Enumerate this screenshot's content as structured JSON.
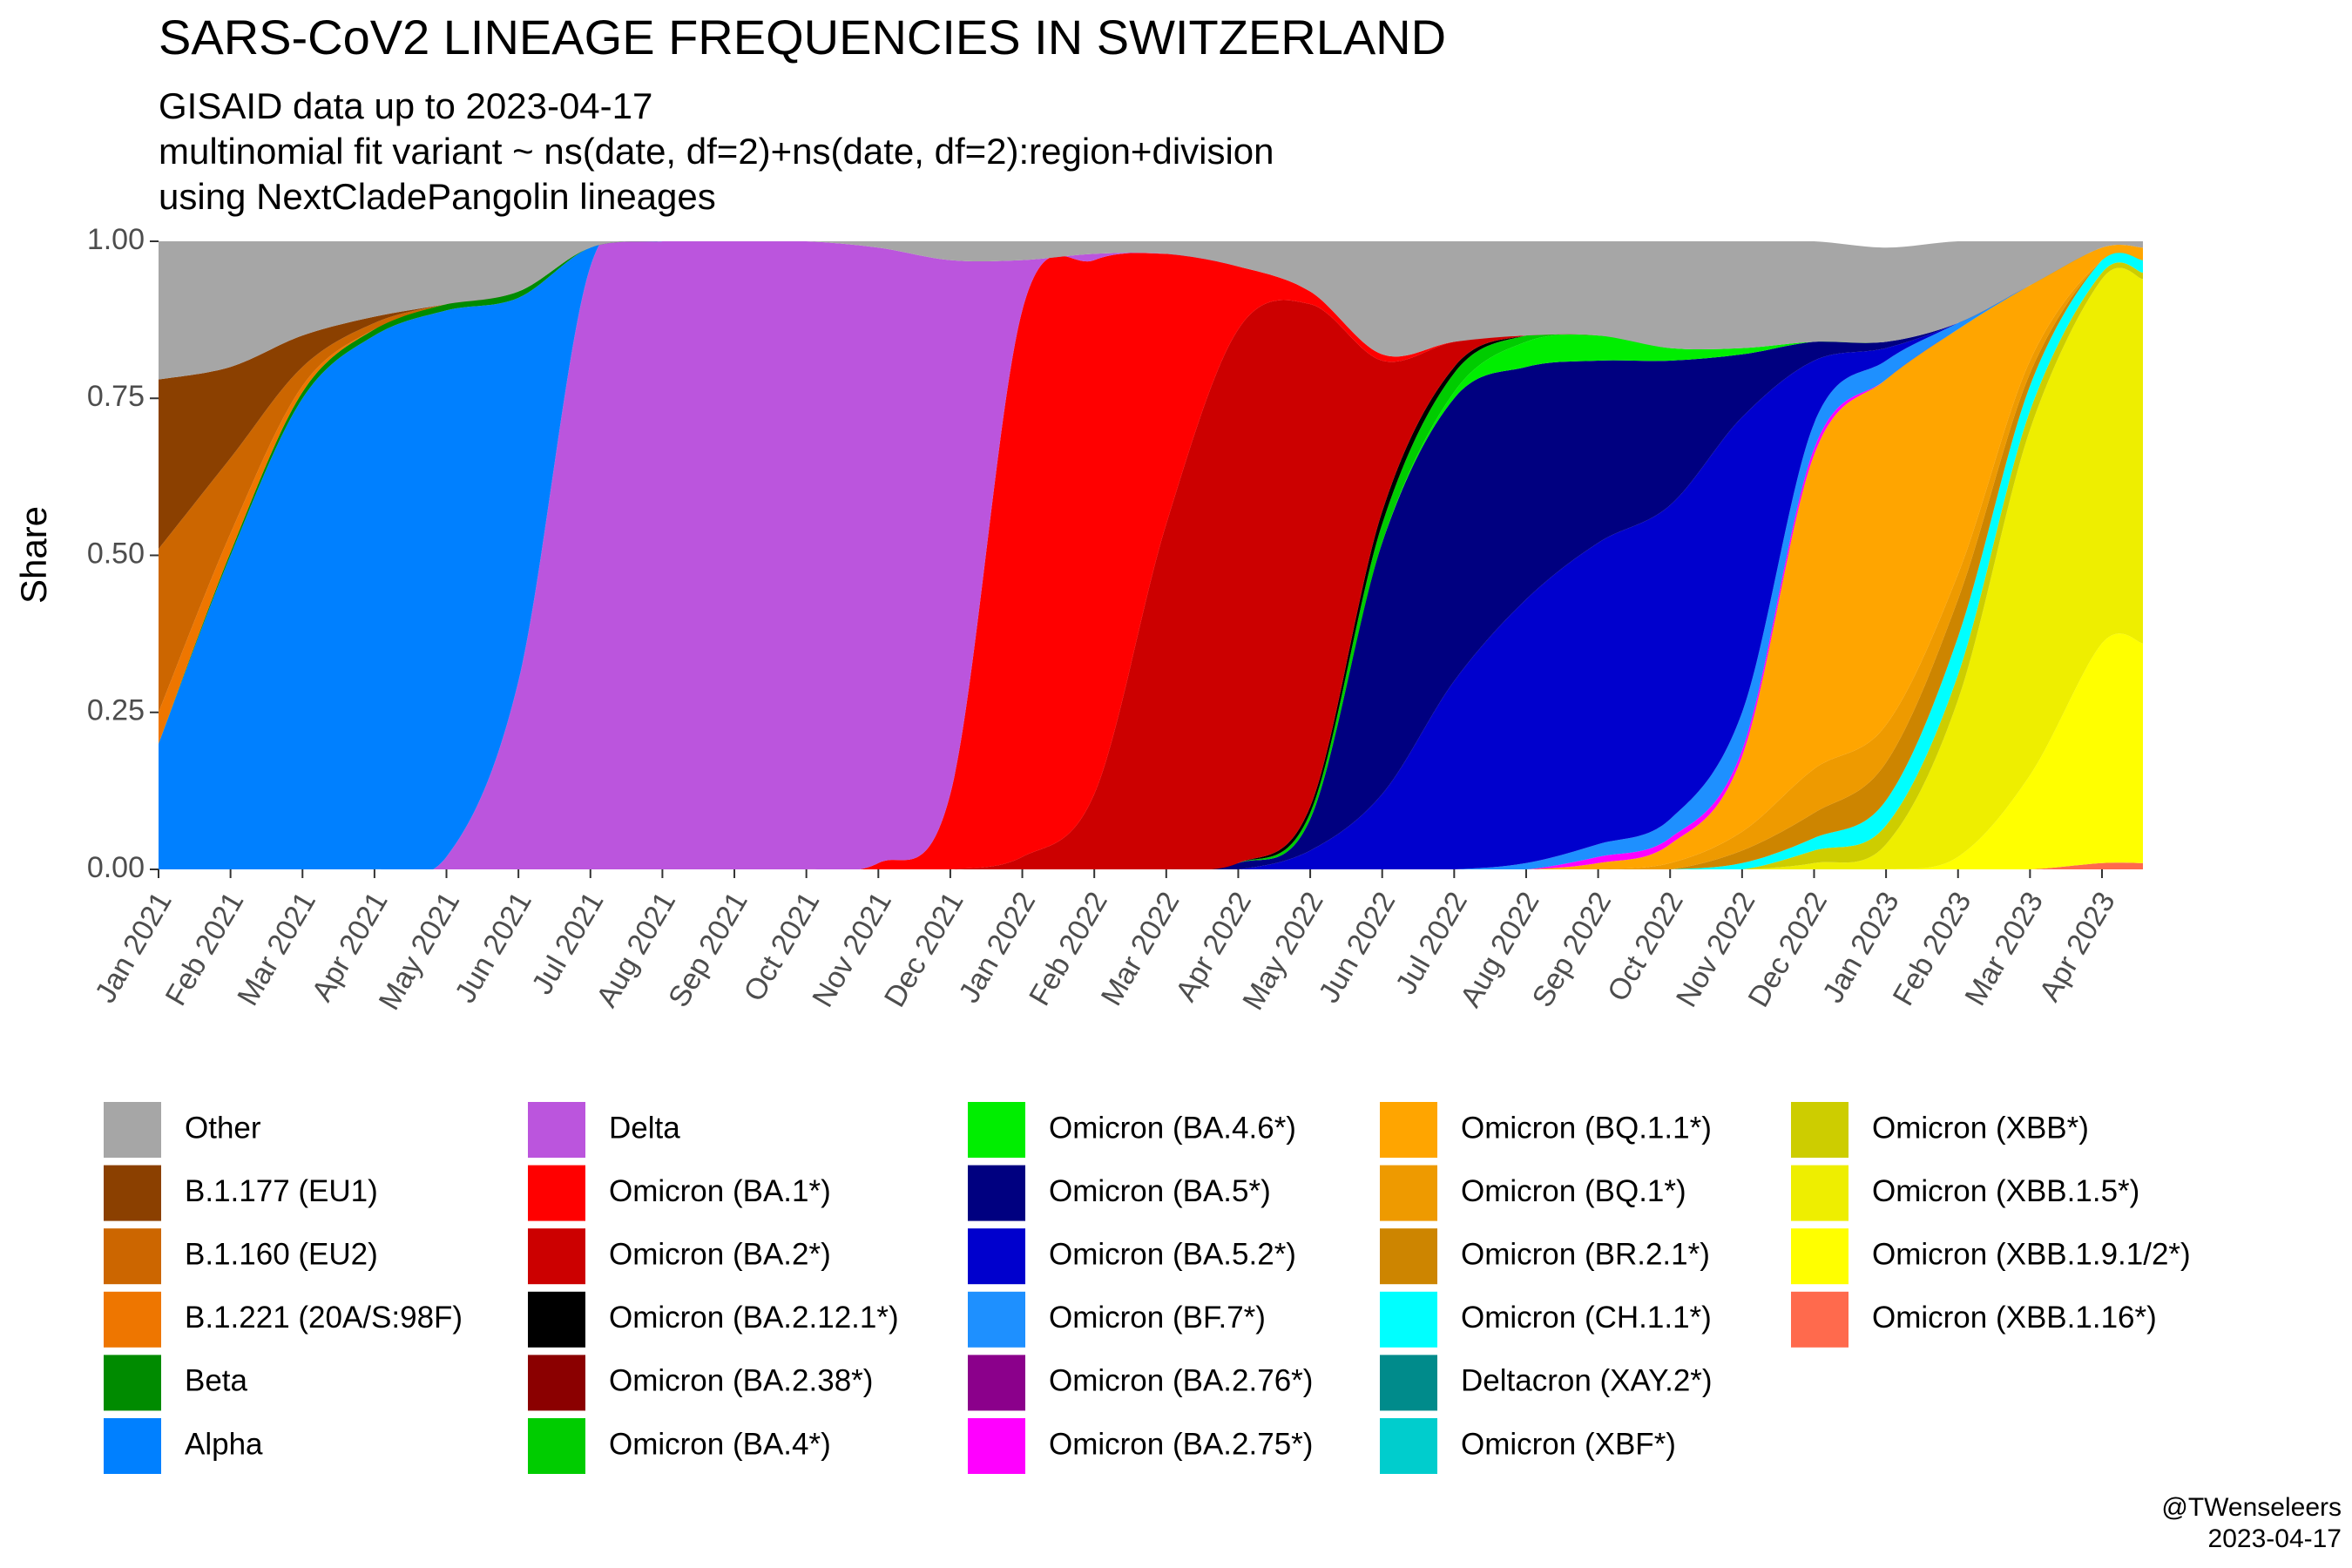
{
  "chart_data": {
    "type": "area",
    "stacked": true,
    "title": "SARS-CoV2 LINEAGE FREQUENCIES IN SWITZERLAND",
    "subtitle": [
      "GISAID data up to 2023-04-17",
      "multinomial fit variant ~ ns(date, df=2)+ns(date, df=2):region+division",
      "using NextCladePangolin lineages"
    ],
    "ylabel": "Share",
    "caption": [
      "@TWenseleers",
      "2023-04-17"
    ],
    "categories": [
      "Jan 2021",
      "Feb 2021",
      "Mar 2021",
      "Apr 2021",
      "May 2021",
      "Jun 2021",
      "Jul 2021",
      "Aug 2021",
      "Sep 2021",
      "Oct 2021",
      "Nov 2021",
      "Dec 2021",
      "Jan 2022",
      "Feb 2022",
      "Mar 2022",
      "Apr 2022",
      "May 2022",
      "Jun 2022",
      "Jul 2022",
      "Aug 2022",
      "Sep 2022",
      "Oct 2022",
      "Nov 2022",
      "Dec 2022",
      "Jan 2023",
      "Feb 2023",
      "Mar 2023",
      "Apr 2023"
    ],
    "ylim": [
      0,
      1
    ],
    "yticks": [
      {
        "value": 0,
        "label": "0.00"
      },
      {
        "value": 0.25,
        "label": "0.25"
      },
      {
        "value": 0.5,
        "label": "0.50"
      },
      {
        "value": 0.75,
        "label": "0.75"
      },
      {
        "value": 1,
        "label": "1.00"
      }
    ],
    "grid": false,
    "legend": "bottom",
    "series": [
      {
        "name": "Other",
        "color": "#a6a6a6",
        "values": [
          0.22,
          0.2,
          0.15,
          0.12,
          0.1,
          0.08,
          0.01,
          0,
          0,
          0,
          0.01,
          0.03,
          0.03,
          0.02,
          0.02,
          0.04,
          0.08,
          0.18,
          0.16,
          0.15,
          0.15,
          0.17,
          0.17,
          0.16,
          0.15,
          0.13,
          0.07,
          0.01
        ]
      },
      {
        "name": "B.1.177 (EU1)",
        "color": "#8b4000",
        "values": [
          0.27,
          0.145,
          0.05,
          0.01,
          0,
          0,
          0,
          0,
          0,
          0,
          0,
          0,
          0,
          0,
          0,
          0,
          0,
          0,
          0,
          0,
          0,
          0,
          0,
          0,
          0,
          0,
          0,
          0
        ]
      },
      {
        "name": "B.1.160 (EU2)",
        "color": "#cc6600",
        "values": [
          0.26,
          0.12,
          0.03,
          0.01,
          0,
          0,
          0,
          0,
          0,
          0,
          0,
          0,
          0,
          0,
          0,
          0,
          0,
          0,
          0,
          0,
          0,
          0,
          0,
          0,
          0,
          0,
          0,
          0
        ]
      },
      {
        "name": "B.1.221 (20A/S:98F)",
        "color": "#ee7600",
        "values": [
          0.05,
          0.03,
          0.01,
          0,
          0,
          0,
          0,
          0,
          0,
          0,
          0,
          0,
          0,
          0,
          0,
          0,
          0,
          0,
          0,
          0,
          0,
          0,
          0,
          0,
          0,
          0,
          0,
          0
        ]
      },
      {
        "name": "Beta",
        "color": "#008b00",
        "values": [
          0,
          0.005,
          0.01,
          0.01,
          0.01,
          0.01,
          0,
          0,
          0,
          0,
          0,
          0,
          0,
          0,
          0,
          0,
          0,
          0,
          0,
          0,
          0,
          0,
          0,
          0,
          0,
          0,
          0,
          0
        ]
      },
      {
        "name": "Alpha",
        "color": "#0080ff",
        "values": [
          0.2,
          0.5,
          0.75,
          0.85,
          0.87,
          0.61,
          0.03,
          0,
          0,
          0,
          0,
          0,
          0,
          0,
          0,
          0,
          0,
          0,
          0,
          0,
          0,
          0,
          0,
          0,
          0,
          0,
          0,
          0
        ]
      },
      {
        "name": "Delta",
        "color": "#bb55dd",
        "values": [
          0,
          0,
          0,
          0,
          0.02,
          0.3,
          0.96,
          1,
          1,
          1,
          0.98,
          0.85,
          0.08,
          0.01,
          0,
          0,
          0,
          0,
          0,
          0,
          0,
          0,
          0,
          0,
          0,
          0,
          0,
          0
        ]
      },
      {
        "name": "Omicron (BA.1*)",
        "color": "#ff0000",
        "values": [
          0,
          0,
          0,
          0,
          0,
          0,
          0,
          0,
          0,
          0,
          0.01,
          0.12,
          0.87,
          0.85,
          0.43,
          0.1,
          0.02,
          0.01,
          0,
          0,
          0,
          0,
          0,
          0,
          0,
          0,
          0,
          0
        ]
      },
      {
        "name": "Omicron (BA.2*)",
        "color": "#cc0000",
        "values": [
          0,
          0,
          0,
          0,
          0,
          0,
          0,
          0,
          0,
          0,
          0,
          0,
          0.02,
          0.12,
          0.55,
          0.85,
          0.8,
          0.24,
          0.04,
          0,
          0,
          0,
          0,
          0,
          0,
          0,
          0,
          0
        ]
      },
      {
        "name": "Omicron (BA.2.12.1*)",
        "color": "#000000",
        "values": [
          0,
          0,
          0,
          0,
          0,
          0,
          0,
          0,
          0,
          0,
          0,
          0,
          0,
          0,
          0,
          0,
          0.01,
          0.02,
          0.01,
          0,
          0,
          0,
          0,
          0,
          0,
          0,
          0,
          0
        ]
      },
      {
        "name": "Omicron (BA.2.38*)",
        "color": "#8b0000",
        "values": [
          0,
          0,
          0,
          0,
          0,
          0,
          0,
          0,
          0,
          0,
          0,
          0,
          0,
          0,
          0,
          0,
          0,
          0,
          0,
          0,
          0,
          0,
          0,
          0,
          0,
          0,
          0,
          0
        ]
      },
      {
        "name": "Omicron (BA.4*)",
        "color": "#00cc00",
        "values": [
          0,
          0,
          0,
          0,
          0,
          0,
          0,
          0,
          0,
          0,
          0,
          0,
          0,
          0,
          0,
          0,
          0.01,
          0.03,
          0.03,
          0.01,
          0,
          0,
          0,
          0,
          0,
          0,
          0,
          0
        ]
      },
      {
        "name": "Omicron (BA.4.6*)",
        "color": "#00ee00",
        "values": [
          0,
          0,
          0,
          0,
          0,
          0,
          0,
          0,
          0,
          0,
          0,
          0,
          0,
          0,
          0,
          0,
          0,
          0,
          0.01,
          0.04,
          0.04,
          0.02,
          0.01,
          0,
          0,
          0,
          0,
          0
        ]
      },
      {
        "name": "Omicron (BA.5*)",
        "color": "#000080",
        "values": [
          0,
          0,
          0,
          0,
          0,
          0,
          0,
          0,
          0,
          0,
          0,
          0,
          0,
          0,
          0,
          0.01,
          0.05,
          0.4,
          0.45,
          0.37,
          0.29,
          0.23,
          0.1,
          0.03,
          0.01,
          0,
          0,
          0
        ]
      },
      {
        "name": "Omicron (BA.5.2*)",
        "color": "#0000cd",
        "values": [
          0,
          0,
          0,
          0,
          0,
          0,
          0,
          0,
          0,
          0,
          0,
          0,
          0,
          0,
          0,
          0,
          0.03,
          0.12,
          0.3,
          0.42,
          0.48,
          0.5,
          0.47,
          0.1,
          0.02,
          0,
          0,
          0
        ]
      },
      {
        "name": "Omicron (BF.7*)",
        "color": "#1e90ff",
        "values": [
          0,
          0,
          0,
          0,
          0,
          0,
          0,
          0,
          0,
          0,
          0,
          0,
          0,
          0,
          0,
          0,
          0,
          0,
          0,
          0.01,
          0.02,
          0.03,
          0.06,
          0.04,
          0.03,
          0.01,
          0,
          0
        ]
      },
      {
        "name": "Omicron (BA.2.76*)",
        "color": "#8b008b",
        "values": [
          0,
          0,
          0,
          0,
          0,
          0,
          0,
          0,
          0,
          0,
          0,
          0,
          0,
          0,
          0,
          0,
          0,
          0,
          0,
          0,
          0,
          0,
          0,
          0,
          0,
          0,
          0,
          0
        ]
      },
      {
        "name": "Omicron (BA.2.75*)",
        "color": "#ff00ff",
        "values": [
          0,
          0,
          0,
          0,
          0,
          0,
          0,
          0,
          0,
          0,
          0,
          0,
          0,
          0,
          0,
          0,
          0,
          0,
          0,
          0,
          0.01,
          0.01,
          0.01,
          0.01,
          0,
          0,
          0,
          0
        ]
      },
      {
        "name": "Omicron (BQ.1.1*)",
        "color": "#ffa500",
        "values": [
          0,
          0,
          0,
          0,
          0,
          0,
          0,
          0,
          0,
          0,
          0,
          0,
          0,
          0,
          0,
          0,
          0,
          0,
          0,
          0,
          0.01,
          0.03,
          0.12,
          0.5,
          0.55,
          0.39,
          0.12,
          0.02
        ]
      },
      {
        "name": "Omicron (BQ.1*)",
        "color": "#ee9a00",
        "values": [
          0,
          0,
          0,
          0,
          0,
          0,
          0,
          0,
          0,
          0,
          0,
          0,
          0,
          0,
          0,
          0,
          0,
          0,
          0,
          0,
          0,
          0.01,
          0.03,
          0.07,
          0.06,
          0.04,
          0.02,
          0
        ]
      },
      {
        "name": "Omicron (BR.2.1*)",
        "color": "#cd8500",
        "values": [
          0,
          0,
          0,
          0,
          0,
          0,
          0,
          0,
          0,
          0,
          0,
          0,
          0,
          0,
          0,
          0,
          0,
          0,
          0,
          0,
          0,
          0,
          0.02,
          0.04,
          0.06,
          0.06,
          0.02,
          0
        ]
      },
      {
        "name": "Omicron (CH.1.1*)",
        "color": "#00ffff",
        "values": [
          0,
          0,
          0,
          0,
          0,
          0,
          0,
          0,
          0,
          0,
          0,
          0,
          0,
          0,
          0,
          0,
          0,
          0,
          0,
          0,
          0,
          0,
          0.01,
          0.02,
          0.04,
          0.06,
          0.04,
          0.02
        ]
      },
      {
        "name": "Deltacron (XAY.2*)",
        "color": "#008b8b",
        "values": [
          0,
          0,
          0,
          0,
          0,
          0,
          0,
          0,
          0,
          0,
          0,
          0,
          0,
          0,
          0,
          0,
          0,
          0,
          0,
          0,
          0,
          0,
          0,
          0,
          0,
          0,
          0,
          0
        ]
      },
      {
        "name": "Omicron (XBF*)",
        "color": "#00cdcd",
        "values": [
          0,
          0,
          0,
          0,
          0,
          0,
          0,
          0,
          0,
          0,
          0,
          0,
          0,
          0,
          0,
          0,
          0,
          0,
          0,
          0,
          0,
          0,
          0,
          0,
          0,
          0,
          0,
          0
        ]
      },
      {
        "name": "Omicron (XBB*)",
        "color": "#cdcd00",
        "values": [
          0,
          0,
          0,
          0,
          0,
          0,
          0,
          0,
          0,
          0,
          0,
          0,
          0,
          0,
          0,
          0,
          0,
          0,
          0,
          0,
          0,
          0,
          0,
          0.02,
          0.03,
          0.04,
          0.03,
          0.01
        ]
      },
      {
        "name": "Omicron (XBB.1.5*)",
        "color": "#eeee00",
        "values": [
          0,
          0,
          0,
          0,
          0,
          0,
          0,
          0,
          0,
          0,
          0,
          0,
          0,
          0,
          0,
          0,
          0,
          0,
          0,
          0,
          0,
          0,
          0,
          0.01,
          0.04,
          0.25,
          0.55,
          0.58
        ]
      },
      {
        "name": "Omicron (XBB.1.9.1/2*)",
        "color": "#ffff00",
        "values": [
          0,
          0,
          0,
          0,
          0,
          0,
          0,
          0,
          0,
          0,
          0,
          0,
          0,
          0,
          0,
          0,
          0,
          0,
          0,
          0,
          0,
          0,
          0,
          0,
          0,
          0.02,
          0.15,
          0.35
        ]
      },
      {
        "name": "Omicron (XBB.1.16*)",
        "color": "#ff6a4d",
        "values": [
          0,
          0,
          0,
          0,
          0,
          0,
          0,
          0,
          0,
          0,
          0,
          0,
          0,
          0,
          0,
          0,
          0,
          0,
          0,
          0,
          0,
          0,
          0,
          0,
          0,
          0,
          0,
          0.01
        ]
      }
    ]
  }
}
